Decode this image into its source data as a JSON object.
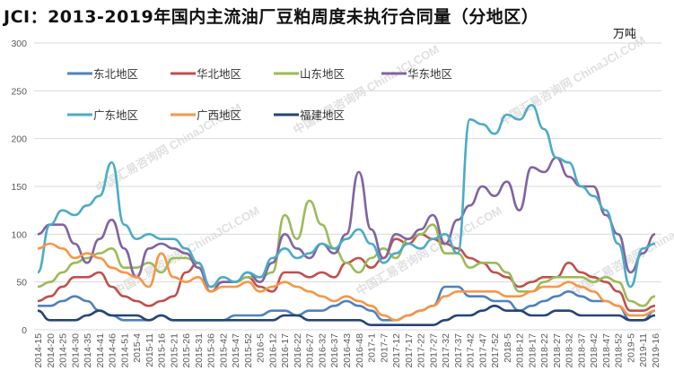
{
  "chart_data": {
    "type": "line",
    "title": "JCI：2013-2019年国内主流油厂豆粕周度未执行合同量（分地区）",
    "unit": "万吨",
    "ylim": [
      0,
      300
    ],
    "yticks": [
      0,
      50,
      100,
      150,
      200,
      250,
      300
    ],
    "grid": true,
    "legend_position": "top-left",
    "x": [
      "2014-15",
      "2014-20",
      "2014-25",
      "2014-30",
      "2014-35",
      "2014-41",
      "2014-46",
      "2014-51",
      "2015-4",
      "2015-11",
      "2015-16",
      "2015-21",
      "2015-26",
      "2015-31",
      "2015-36",
      "2015-42",
      "2015-47",
      "2015-52",
      "2016-5",
      "2016-12",
      "2016-17",
      "2016-22",
      "2016-27",
      "2016-32",
      "2016-37",
      "2016-43",
      "2016-48",
      "2017-1",
      "2017-7",
      "2017-12",
      "2017-17",
      "2017-22",
      "2017-27",
      "2017-32",
      "2017-37",
      "2017-42",
      "2017-47",
      "2017-52",
      "2018-5",
      "2018-12",
      "2018-17",
      "2018-22",
      "2018-27",
      "2018-32",
      "2018-37",
      "2018-42",
      "2018-47",
      "2018-52",
      "2019-5",
      "2019-11",
      "2019-16"
    ],
    "series": [
      {
        "name": "东北地区",
        "color": "#4F81BD",
        "values": [
          25,
          25,
          30,
          35,
          30,
          20,
          15,
          10,
          10,
          10,
          15,
          10,
          10,
          10,
          10,
          10,
          15,
          15,
          15,
          20,
          20,
          15,
          20,
          20,
          25,
          30,
          25,
          20,
          10,
          10,
          15,
          20,
          25,
          45,
          45,
          35,
          35,
          30,
          30,
          20,
          25,
          30,
          35,
          40,
          35,
          30,
          30,
          25,
          10,
          10,
          20
        ]
      },
      {
        "name": "华北地区",
        "color": "#C0504D",
        "values": [
          30,
          35,
          45,
          55,
          55,
          60,
          45,
          35,
          30,
          25,
          30,
          35,
          60,
          70,
          45,
          50,
          50,
          55,
          45,
          40,
          60,
          60,
          55,
          60,
          55,
          70,
          75,
          65,
          75,
          95,
          90,
          100,
          95,
          90,
          85,
          75,
          70,
          60,
          55,
          45,
          50,
          55,
          55,
          70,
          60,
          55,
          50,
          40,
          20,
          20,
          25
        ]
      },
      {
        "name": "山东地区",
        "color": "#9BBB59",
        "values": [
          45,
          50,
          60,
          70,
          75,
          80,
          85,
          65,
          65,
          70,
          60,
          75,
          75,
          70,
          45,
          50,
          50,
          55,
          55,
          60,
          120,
          95,
          135,
          110,
          85,
          70,
          60,
          75,
          85,
          75,
          95,
          100,
          110,
          80,
          80,
          65,
          70,
          70,
          60,
          40,
          40,
          50,
          55,
          55,
          55,
          50,
          55,
          50,
          30,
          25,
          35
        ]
      },
      {
        "name": "华东地区",
        "color": "#8064A2",
        "values": [
          100,
          110,
          110,
          90,
          70,
          95,
          115,
          85,
          55,
          85,
          90,
          85,
          80,
          65,
          40,
          50,
          50,
          60,
          50,
          70,
          100,
          85,
          75,
          90,
          80,
          100,
          165,
          105,
          75,
          100,
          95,
          105,
          120,
          90,
          115,
          130,
          150,
          140,
          155,
          125,
          170,
          165,
          180,
          160,
          150,
          150,
          120,
          100,
          60,
          80,
          100
        ]
      },
      {
        "name": "广东地区",
        "color": "#4BACC6",
        "values": [
          60,
          110,
          125,
          120,
          130,
          140,
          175,
          110,
          95,
          100,
          95,
          95,
          85,
          70,
          45,
          55,
          50,
          60,
          55,
          75,
          85,
          75,
          80,
          90,
          85,
          95,
          105,
          90,
          70,
          80,
          90,
          85,
          95,
          100,
          80,
          220,
          215,
          205,
          225,
          220,
          235,
          210,
          180,
          175,
          150,
          140,
          125,
          90,
          45,
          85,
          90
        ]
      },
      {
        "name": "广西地区",
        "color": "#F79646",
        "values": [
          85,
          90,
          85,
          75,
          80,
          75,
          65,
          60,
          55,
          45,
          80,
          55,
          50,
          55,
          40,
          45,
          45,
          50,
          40,
          45,
          50,
          45,
          40,
          35,
          30,
          35,
          30,
          25,
          15,
          10,
          15,
          20,
          25,
          35,
          40,
          40,
          40,
          40,
          35,
          35,
          40,
          45,
          45,
          50,
          45,
          40,
          30,
          25,
          15,
          15,
          20
        ]
      },
      {
        "name": "福建地区",
        "color": "#264478",
        "values": [
          20,
          10,
          10,
          10,
          15,
          20,
          15,
          15,
          15,
          10,
          15,
          10,
          10,
          10,
          10,
          10,
          10,
          10,
          10,
          10,
          15,
          15,
          10,
          10,
          10,
          10,
          10,
          5,
          5,
          5,
          5,
          5,
          5,
          10,
          15,
          15,
          20,
          25,
          20,
          20,
          15,
          15,
          20,
          20,
          15,
          15,
          15,
          15,
          10,
          10,
          15
        ]
      }
    ]
  },
  "watermark": "中国汇易咨询网 ChinaJCI.COM"
}
